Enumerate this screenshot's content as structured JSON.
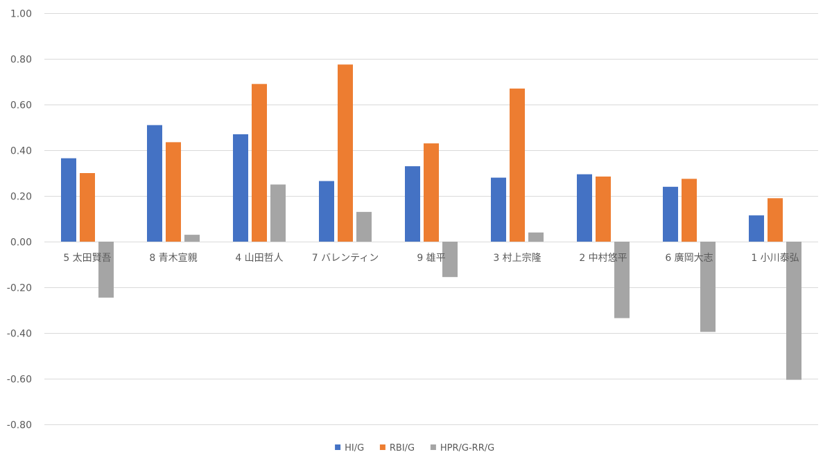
{
  "chart_data": {
    "type": "bar",
    "categories": [
      "5 太田賢吾",
      "8 青木宣親",
      "4 山田哲人",
      "7 バレンティン",
      "9 雄平",
      "3 村上宗隆",
      "2 中村悠平",
      "6 廣岡大志",
      "1 小川泰弘"
    ],
    "series": [
      {
        "name": "HI/G",
        "color": "#4472c4",
        "values": [
          0.365,
          0.51,
          0.47,
          0.265,
          0.33,
          0.28,
          0.295,
          0.24,
          0.115
        ]
      },
      {
        "name": "RBI/G",
        "color": "#ed7d31",
        "values": [
          0.3,
          0.435,
          0.69,
          0.775,
          0.43,
          0.67,
          0.285,
          0.275,
          0.19
        ]
      },
      {
        "name": "HPR/G-RR/G",
        "color": "#a5a5a5",
        "values": [
          -0.245,
          0.03,
          0.25,
          0.13,
          -0.155,
          0.04,
          -0.335,
          -0.395,
          -0.605
        ]
      }
    ],
    "yticks": [
      "1.00",
      "0.80",
      "0.60",
      "0.40",
      "0.20",
      "0.00",
      "-0.20",
      "-0.40",
      "-0.60",
      "-0.80"
    ],
    "ylim": [
      -0.8,
      1.0
    ],
    "grid": true,
    "legend": "bottom",
    "title": "",
    "xlabel": "",
    "ylabel": ""
  }
}
